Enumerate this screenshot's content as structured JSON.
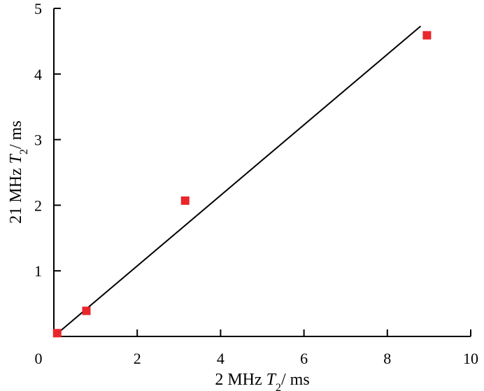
{
  "chart_data": {
    "type": "scatter",
    "xlabel": {
      "prefix": "2 MHz ",
      "var": "T",
      "sub": "2",
      "suffix": "/ ms"
    },
    "ylabel": {
      "prefix": "21 MHz ",
      "var": "T",
      "sub": "2",
      "suffix": "/ ms"
    },
    "xlim": [
      0,
      10
    ],
    "ylim": [
      0,
      5
    ],
    "xticks": [
      0,
      2,
      4,
      6,
      8,
      10
    ],
    "yticks": [
      1,
      2,
      3,
      4,
      5
    ],
    "grid": false,
    "series": [
      {
        "points": [
          {
            "x": 0.08,
            "y": 0.05
          },
          {
            "x": 0.78,
            "y": 0.39
          },
          {
            "x": 3.15,
            "y": 2.07
          },
          {
            "x": 8.95,
            "y": 4.59
          }
        ],
        "color": "#e8262c",
        "marker": "square"
      }
    ],
    "fit_line": {
      "x": [
        0,
        8.8
      ],
      "y": [
        0,
        4.73
      ],
      "color": "#000000"
    }
  }
}
